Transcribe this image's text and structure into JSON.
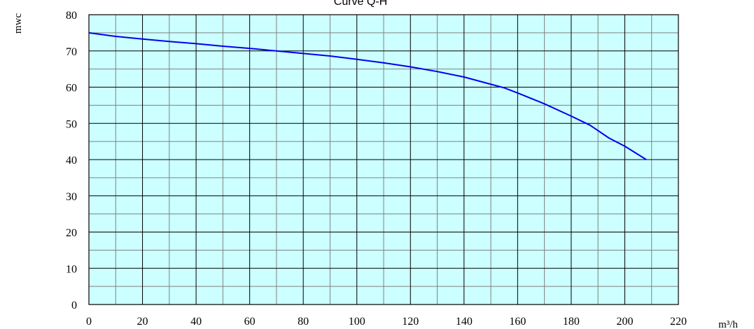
{
  "chart_data": {
    "type": "line",
    "title": "Curve Q-H",
    "xlabel": "m³/h",
    "ylabel": "mwc",
    "xlim": [
      0,
      220
    ],
    "ylim": [
      0,
      80
    ],
    "xticks": [
      "0",
      "20",
      "40",
      "60",
      "80",
      "100",
      "120",
      "140",
      "160",
      "180",
      "200",
      "220"
    ],
    "yticks": [
      "0",
      "10",
      "20",
      "30",
      "40",
      "50",
      "60",
      "70",
      "80"
    ],
    "grid": true,
    "minor_grid": true,
    "colors": {
      "plot_background": "#ccffff",
      "major_grid": "#000000",
      "minor_grid": "#808080",
      "line": "#0000ee"
    },
    "series": [
      {
        "x": [
          0,
          10,
          20,
          30,
          40,
          50,
          60,
          70,
          80,
          90,
          100,
          110,
          120,
          130,
          140,
          150,
          155,
          160,
          170,
          180,
          187,
          190,
          194,
          200,
          208
        ],
        "y": [
          75,
          74,
          73.3,
          72.6,
          72,
          71.3,
          70.7,
          70,
          69.3,
          68.6,
          67.7,
          66.7,
          65.6,
          64.3,
          62.8,
          60.8,
          59.8,
          58.4,
          55.4,
          52,
          49.5,
          48,
          46,
          43.7,
          40
        ]
      }
    ]
  }
}
